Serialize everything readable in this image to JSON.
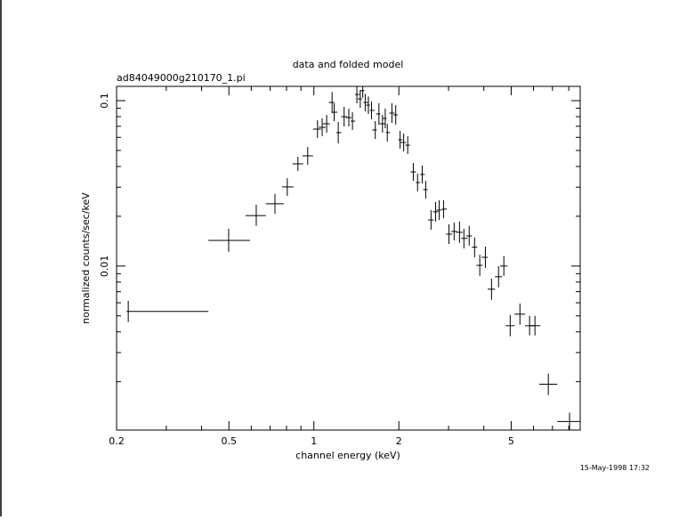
{
  "chart_data": {
    "type": "errorbar",
    "title": "data and folded model",
    "subtitle": "ad84049000g210170_1.pi",
    "x_label": "channel energy (keV)",
    "y_label": "normalized counts/sec/keV",
    "annotation": "15-May-1998 17:32",
    "xscale": "log",
    "yscale": "log",
    "xlim": [
      0.2,
      8.78
    ],
    "ylim": [
      0.00102,
      0.122
    ],
    "xticks": [
      0.2,
      0.5,
      1,
      2,
      5
    ],
    "xminor_ticks": [
      0.3,
      0.4,
      0.6,
      0.7,
      0.8,
      0.9,
      3,
      4,
      6,
      7,
      8
    ],
    "yticks": [
      0.01,
      0.1
    ],
    "yminor_ticks": [
      0.002,
      0.003,
      0.004,
      0.005,
      0.006,
      0.007,
      0.008,
      0.009,
      0.02,
      0.03,
      0.04,
      0.05,
      0.06,
      0.07,
      0.08,
      0.09
    ],
    "color": "#000000",
    "x": [
      0.22,
      0.499,
      0.625,
      0.728,
      0.805,
      0.878,
      0.951,
      1.03,
      1.07,
      1.11,
      1.16,
      1.18,
      1.22,
      1.28,
      1.33,
      1.37,
      1.42,
      1.46,
      1.49,
      1.52,
      1.56,
      1.6,
      1.65,
      1.7,
      1.75,
      1.79,
      1.82,
      1.89,
      1.95,
      2.02,
      2.08,
      2.15,
      2.25,
      2.33,
      2.42,
      2.49,
      2.6,
      2.7,
      2.78,
      2.88,
      3.01,
      3.14,
      3.28,
      3.4,
      3.55,
      3.71,
      3.87,
      4.05,
      4.26,
      4.51,
      4.71,
      4.96,
      5.37,
      5.81,
      6.07,
      6.77,
      8.05
    ],
    "x_low": [
      0.217,
      0.423,
      0.573,
      0.676,
      0.771,
      0.84,
      0.91,
      0.993,
      1.04,
      1.075,
      1.13,
      1.16,
      1.2,
      1.25,
      1.3,
      1.35,
      1.4,
      1.43,
      1.46,
      1.5,
      1.53,
      1.58,
      1.61,
      1.66,
      1.71,
      1.75,
      1.8,
      1.85,
      1.91,
      1.99,
      2.03,
      2.11,
      2.2,
      2.3,
      2.38,
      2.44,
      2.54,
      2.64,
      2.72,
      2.84,
      2.94,
      3.07,
      3.19,
      3.33,
      3.47,
      3.63,
      3.76,
      3.93,
      4.13,
      4.38,
      4.57,
      4.78,
      5.14,
      5.6,
      5.85,
      6.29,
      7.28
    ],
    "x_high": [
      0.423,
      0.594,
      0.676,
      0.782,
      0.847,
      0.917,
      0.993,
      1.06,
      1.1,
      1.14,
      1.18,
      1.21,
      1.25,
      1.31,
      1.36,
      1.4,
      1.45,
      1.48,
      1.51,
      1.56,
      1.58,
      1.64,
      1.67,
      1.72,
      1.79,
      1.81,
      1.86,
      1.93,
      1.98,
      2.06,
      2.12,
      2.19,
      2.3,
      2.38,
      2.47,
      2.53,
      2.66,
      2.76,
      2.84,
      2.96,
      3.09,
      3.21,
      3.37,
      3.5,
      3.63,
      3.79,
      3.96,
      4.13,
      4.38,
      4.64,
      4.85,
      5.14,
      5.6,
      6.02,
      6.34,
      7.28,
      8.78
    ],
    "y": [
      0.00532,
      0.0143,
      0.0202,
      0.0238,
      0.0301,
      0.0415,
      0.0464,
      0.0673,
      0.069,
      0.0725,
      0.0975,
      0.0851,
      0.0641,
      0.08,
      0.079,
      0.0752,
      0.109,
      0.1025,
      0.115,
      0.0975,
      0.094,
      0.0873,
      0.0665,
      0.0831,
      0.0725,
      0.0781,
      0.0641,
      0.0841,
      0.082,
      0.058,
      0.0559,
      0.0538,
      0.0371,
      0.032,
      0.0358,
      0.029,
      0.019,
      0.0213,
      0.0218,
      0.0221,
      0.0156,
      0.0162,
      0.016,
      0.0147,
      0.0152,
      0.013,
      0.0101,
      0.0113,
      0.00725,
      0.00862,
      0.01,
      0.00436,
      0.00512,
      0.00436,
      0.00436,
      0.00193,
      0.00115
    ],
    "y_low": [
      0.00459,
      0.0122,
      0.0175,
      0.0207,
      0.0266,
      0.0376,
      0.041,
      0.0595,
      0.061,
      0.0641,
      0.0841,
      0.0752,
      0.0552,
      0.0698,
      0.0698,
      0.0665,
      0.0964,
      0.0906,
      0.104,
      0.0862,
      0.0831,
      0.0771,
      0.0587,
      0.0716,
      0.0641,
      0.0681,
      0.0566,
      0.0734,
      0.0716,
      0.0513,
      0.0494,
      0.0476,
      0.0328,
      0.0283,
      0.0316,
      0.0256,
      0.0166,
      0.0186,
      0.019,
      0.0195,
      0.0136,
      0.0143,
      0.0138,
      0.0128,
      0.0133,
      0.0113,
      0.00873,
      0.00975,
      0.00625,
      0.00743,
      0.00873,
      0.00376,
      0.00442,
      0.00381,
      0.00381,
      0.00166,
      0.00101
    ],
    "y_high": [
      0.00617,
      0.0168,
      0.0235,
      0.0273,
      0.034,
      0.0458,
      0.0525,
      0.0762,
      0.0781,
      0.082,
      0.113,
      0.0964,
      0.0743,
      0.0917,
      0.0895,
      0.0851,
      0.123,
      0.116,
      0.127,
      0.11,
      0.106,
      0.0988,
      0.0752,
      0.0964,
      0.082,
      0.0895,
      0.0725,
      0.0964,
      0.094,
      0.0656,
      0.0633,
      0.061,
      0.042,
      0.0362,
      0.0405,
      0.0328,
      0.0218,
      0.0244,
      0.025,
      0.025,
      0.0179,
      0.0183,
      0.0186,
      0.0168,
      0.0175,
      0.0149,
      0.0117,
      0.0131,
      0.00841,
      0.01,
      0.0115,
      0.00506,
      0.00594,
      0.005,
      0.005,
      0.00224,
      0.0013
    ]
  }
}
